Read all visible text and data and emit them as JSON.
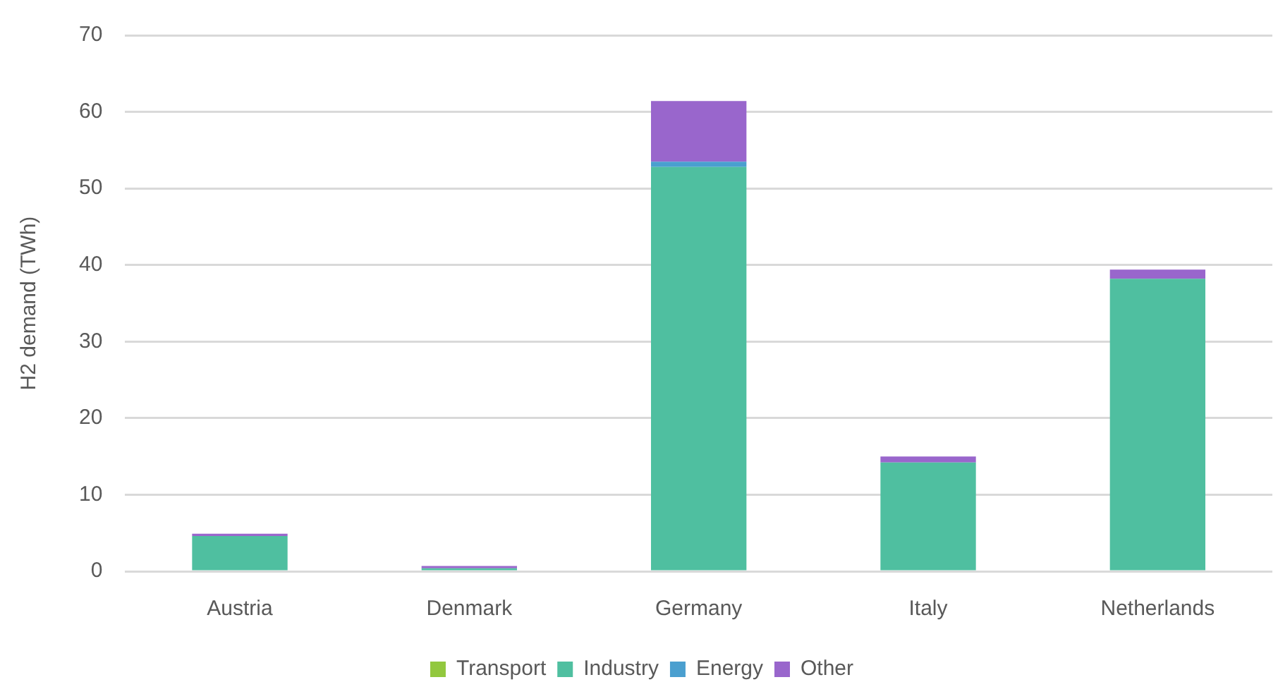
{
  "chart_data": {
    "type": "bar",
    "stacked": true,
    "ylabel": "H2 demand (TWh)",
    "categories": [
      "Austria",
      "Denmark",
      "Germany",
      "Italy",
      "Netherlands"
    ],
    "series": [
      {
        "name": "Transport",
        "color": "#92c83e",
        "values": [
          0,
          0,
          0,
          0,
          0
        ]
      },
      {
        "name": "Industry",
        "color": "#4fbfa0",
        "values": [
          4.6,
          0.4,
          52.8,
          14.2,
          38.2
        ]
      },
      {
        "name": "Energy",
        "color": "#4a9fcf",
        "values": [
          0,
          0,
          0.7,
          0,
          0
        ]
      },
      {
        "name": "Other",
        "color": "#9966cc",
        "values": [
          0.3,
          0.3,
          7.9,
          0.8,
          1.2
        ]
      }
    ],
    "ylim": [
      0,
      70
    ],
    "yticks": [
      0,
      10,
      20,
      30,
      40,
      50,
      60,
      70
    ],
    "grid": "y",
    "legend": "bottom"
  }
}
